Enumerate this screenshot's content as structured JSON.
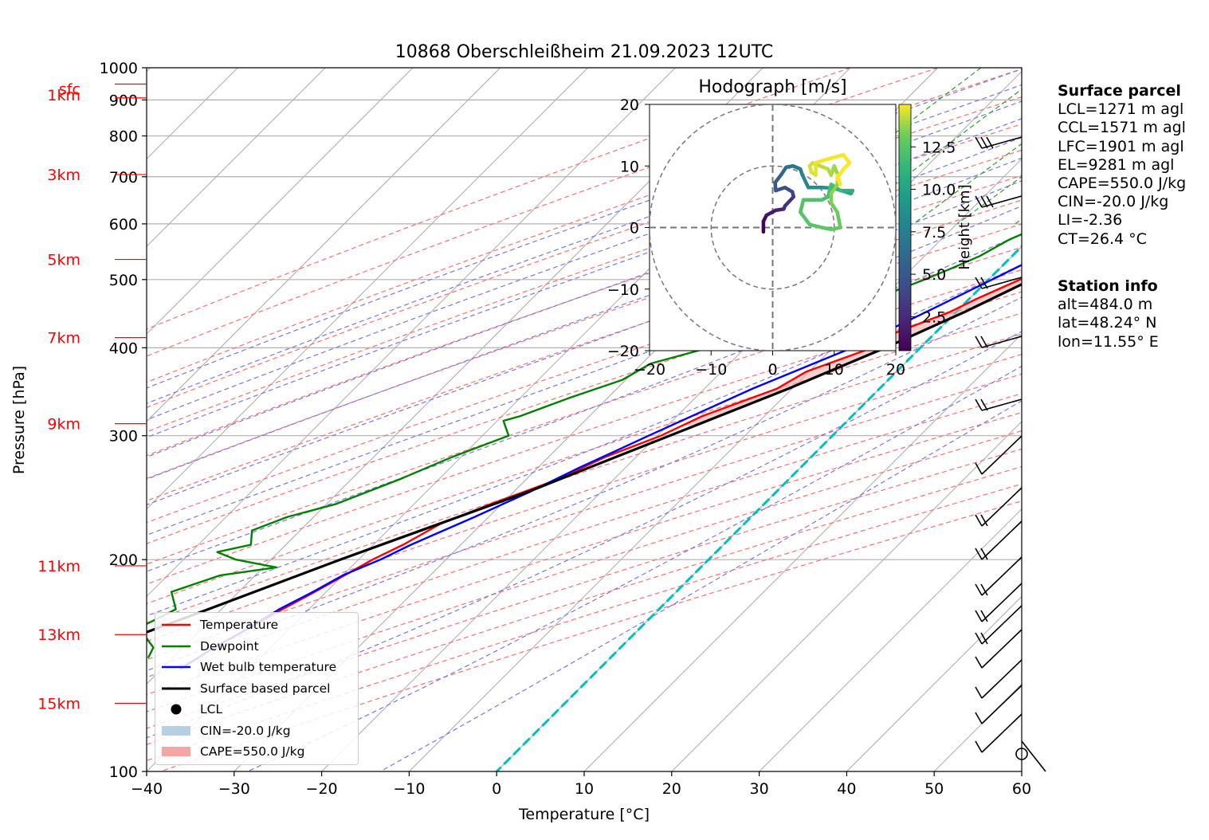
{
  "title": "10868 Oberschleißheim 21.09.2023 12UTC",
  "axes": {
    "xlabel": "Temperature [°C]",
    "ylabel": "Pressure [hPa]",
    "xticks": [
      "−40",
      "−30",
      "−20",
      "−10",
      "0",
      "10",
      "20",
      "30",
      "40",
      "50",
      "60"
    ],
    "yticks": [
      "100",
      "200",
      "300",
      "400",
      "500",
      "600",
      "700",
      "800",
      "900",
      "1000"
    ],
    "height_labels": [
      "15km",
      "13km",
      "11km",
      "9km",
      "7km",
      "5km",
      "3km",
      "1km",
      "sfc"
    ]
  },
  "legend": {
    "temperature": "Temperature",
    "dewpoint": "Dewpoint",
    "wetbulb": "Wet bulb temperature",
    "parcel": "Surface based parcel",
    "lcl": "LCL",
    "cin": "CIN=-20.0 J/kg",
    "cape": "CAPE=550.0 J/kg"
  },
  "hodograph": {
    "title": "Hodograph [m/s]",
    "ticks": [
      "−20",
      "−10",
      "0",
      "10",
      "20"
    ],
    "colorbar_label": "Height [km]",
    "colorbar_ticks": [
      "2.5",
      "5.0",
      "7.5",
      "10.0",
      "12.5"
    ]
  },
  "surface_parcel": {
    "header": "Surface parcel",
    "lcl": "LCL=1271 m agl",
    "ccl": "CCL=1571 m agl",
    "lfc": "LFC=1901 m agl",
    "el": "EL=9281 m agl",
    "cape": "CAPE=550.0 J/kg",
    "cin": "CIN=-20.0 J/kg",
    "li": "LI=-2.36",
    "ct": "CT=26.4 °C"
  },
  "station_info": {
    "header": "Station info",
    "alt": "alt=484.0 m",
    "lat": "lat=48.24° N",
    "lon": "lon=11.55° E"
  },
  "colors": {
    "temperature": "#ff0000",
    "dewpoint": "#008000",
    "wetbulb": "#0000ff",
    "parcel": "#000000",
    "dry_adiabat": "#ff6f6f",
    "moist_adiabat": "#7777ee",
    "mixing_ratio": "#2aa02a",
    "isotherm": "#b0b0b0",
    "freezing_isotherm": "#00bfbf",
    "cape_fill": "#f4a6a6",
    "cin_fill": "#b7cfe3",
    "height_labels": "#ff0000"
  },
  "chart_data": [
    {
      "type": "line",
      "title": "10868 Oberschleißheim 21.09.2023 12UTC",
      "xlabel": "Temperature [°C]",
      "ylabel": "Pressure [hPa]",
      "xlim": [
        -40,
        60
      ],
      "ylim": [
        1000,
        100
      ],
      "yscale": "log",
      "skew": "45°",
      "grid": true,
      "legend_position": "lower-left",
      "series": [
        {
          "name": "Temperature",
          "p": [
            948,
            930,
            900,
            870,
            850,
            820,
            800,
            780,
            750,
            720,
            700,
            680,
            650,
            620,
            600,
            570,
            550,
            520,
            500,
            470,
            450,
            420,
            400,
            370,
            350,
            320,
            300,
            280,
            260,
            240,
            225,
            210,
            200,
            190,
            180,
            170,
            160,
            150,
            140
          ],
          "t": [
            24.6,
            22.8,
            21.2,
            20.8,
            20.2,
            19.7,
            17.4,
            16.6,
            15.2,
            14.0,
            13.6,
            12.3,
            11.9,
            10.2,
            10.4,
            8.5,
            7.5,
            5.3,
            3.6,
            0.9,
            -0.7,
            -4.6,
            -5.5,
            -10.3,
            -11.7,
            -17.1,
            -19.6,
            -23.5,
            -26.4,
            -31.2,
            -34.7,
            -36.6,
            -38.4,
            -39.8,
            -41.3,
            -43.0,
            -44.6,
            -46.5,
            -47.8
          ]
        },
        {
          "name": "Dewpoint",
          "p": [
            948,
            930,
            910,
            900,
            860,
            840,
            800,
            760,
            720,
            680,
            650,
            620,
            605,
            590,
            570,
            540,
            520,
            500,
            460,
            440,
            420,
            400,
            380,
            360,
            340,
            320,
            315,
            300,
            280,
            260,
            240,
            230,
            220,
            210,
            205,
            200,
            195,
            190,
            180,
            170,
            160,
            150,
            145
          ],
          "t": [
            15.2,
            14.2,
            13.0,
            10.8,
            9.6,
            10.0,
            8.4,
            7.7,
            6.4,
            4.8,
            5.8,
            4.6,
            0.0,
            -0.6,
            -2.2,
            -3.7,
            -5.4,
            -7.3,
            -12.0,
            -17.3,
            -19.6,
            -24.2,
            -29.0,
            -30.4,
            -34.3,
            -37.9,
            -39.3,
            -37.0,
            -41.0,
            -44.5,
            -48.9,
            -53.0,
            -55.5,
            -54.0,
            -57.0,
            -54.0,
            -48.5,
            -54.0,
            -57.7,
            -55.2,
            -57.3,
            -53.4,
            -52.8
          ]
        },
        {
          "name": "Wet bulb temperature",
          "p": [
            948,
            930,
            910,
            880,
            850,
            820,
            800,
            750,
            700,
            650,
            620,
            600,
            580,
            550,
            500,
            450,
            400,
            350,
            300,
            270,
            250,
            230,
            210,
            200,
            190,
            180,
            170,
            160,
            150,
            140
          ],
          "t": [
            18.5,
            17.8,
            16.8,
            15.0,
            13.9,
            12.0,
            11.6,
            10.6,
            9.6,
            9.4,
            8.0,
            7.8,
            5.9,
            3.8,
            0.4,
            -3.4,
            -7.8,
            -14.5,
            -21.0,
            -25.3,
            -28.1,
            -31.6,
            -35.7,
            -37.5,
            -40.0,
            -41.5,
            -43.4,
            -44.7,
            -46.4,
            -47.9
          ]
        },
        {
          "name": "Surface based parcel",
          "p": [
            948,
            900,
            850,
            818,
            800,
            750,
            700,
            650,
            600,
            550,
            500,
            450,
            400,
            350,
            300,
            250,
            200,
            170,
            150,
            140
          ],
          "t": [
            25.6,
            21.6,
            18.7,
            17.5,
            16.9,
            15.7,
            14.4,
            12.7,
            10.5,
            8.0,
            4.9,
            1.0,
            -4.0,
            -10.4,
            -18.6,
            -28.3,
            -42.1,
            -51.5,
            -58.9,
            -62.9
          ]
        }
      ],
      "lcl": {
        "p": 818,
        "t": 17.5
      },
      "cape_region": {
        "p_range": [
          310,
          740
        ]
      },
      "cin_region": {
        "p_range": [
          800,
          818
        ]
      },
      "freezing_level_isotherm_t": 0
    },
    {
      "type": "line",
      "title": "Hodograph [m/s]",
      "xlim": [
        -20,
        20
      ],
      "ylim": [
        -20,
        20
      ],
      "range_rings": [
        10,
        20
      ],
      "colorbar_label": "Height [km]",
      "colorbar_range": [
        0.5,
        15
      ],
      "points": [
        [
          -1.5,
          -0.7,
          0.5
        ],
        [
          -1.5,
          1.0,
          1.0
        ],
        [
          -1.0,
          2.0,
          1.5
        ],
        [
          0.5,
          2.8,
          2.0
        ],
        [
          1.8,
          3.0,
          2.5
        ],
        [
          2.0,
          3.5,
          3.0
        ],
        [
          3.4,
          5.0,
          3.5
        ],
        [
          3.2,
          5.8,
          4.0
        ],
        [
          2.0,
          6.5,
          4.5
        ],
        [
          0.5,
          6.0,
          5.0
        ],
        [
          0.4,
          7.3,
          5.5
        ],
        [
          1.4,
          8.6,
          6.0
        ],
        [
          2.2,
          9.8,
          6.5
        ],
        [
          3.3,
          10.0,
          7.0
        ],
        [
          4.5,
          9.5,
          7.5
        ],
        [
          4.8,
          8.6,
          8.0
        ],
        [
          5.8,
          6.5,
          8.5
        ],
        [
          8.0,
          6.5,
          9.0
        ],
        [
          9.8,
          6.4,
          9.5
        ],
        [
          11.2,
          6.0,
          10.0
        ],
        [
          12.7,
          5.5,
          10.5
        ],
        [
          13.0,
          6.0,
          11.0
        ],
        [
          11.0,
          6.0,
          11.5
        ],
        [
          9.5,
          7.0,
          12.0
        ],
        [
          9.0,
          5.0,
          12.0
        ],
        [
          8.0,
          4.5,
          12.2
        ],
        [
          5.0,
          4.5,
          12.3
        ],
        [
          4.5,
          2.5,
          12.4
        ],
        [
          6.0,
          0.5,
          12.5
        ],
        [
          8.0,
          0.0,
          12.6
        ],
        [
          9.5,
          -0.3,
          12.8
        ],
        [
          11.0,
          0.0,
          13.0
        ],
        [
          10.5,
          2.5,
          13.2
        ],
        [
          9.5,
          4.0,
          13.4
        ],
        [
          9.5,
          5.5,
          13.6
        ],
        [
          10.5,
          7.0,
          13.7
        ],
        [
          10.6,
          8.5,
          13.8
        ],
        [
          10.0,
          10.0,
          13.9
        ],
        [
          9.5,
          8.5,
          14.0
        ],
        [
          9.0,
          9.5,
          14.2
        ],
        [
          6.5,
          10.5,
          14.4
        ],
        [
          6.0,
          10.0,
          14.5
        ],
        [
          6.3,
          9.0,
          14.6
        ],
        [
          7.0,
          8.5,
          14.7
        ],
        [
          7.0,
          10.5,
          14.8
        ],
        [
          8.5,
          11.0,
          14.9
        ],
        [
          11.5,
          11.8,
          15.0
        ],
        [
          12.5,
          10.5,
          15.1
        ],
        [
          11.5,
          9.5,
          15.2
        ],
        [
          10.5,
          8.0,
          15.3
        ],
        [
          11.0,
          7.0,
          15.4
        ],
        [
          10.5,
          8.5,
          15.5
        ]
      ]
    }
  ]
}
